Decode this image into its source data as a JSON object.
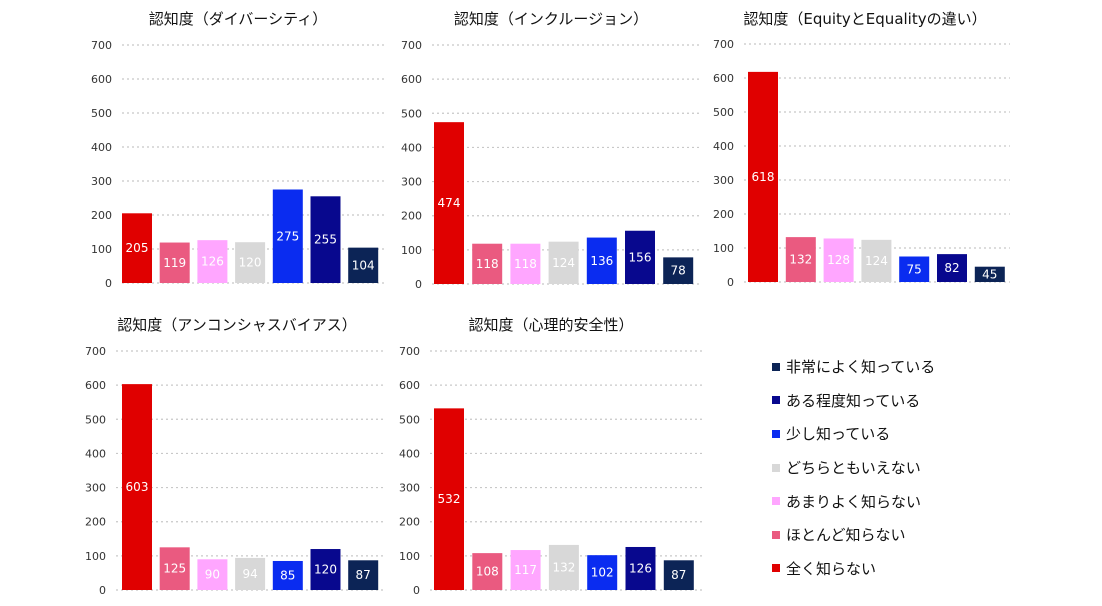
{
  "colors": [
    "#e00000",
    "#ea5a80",
    "#ffa6ff",
    "#d8d8d8",
    "#0a2cf0",
    "#08088e",
    "#0c2456"
  ],
  "chart_data": [
    {
      "type": "bar",
      "title": "認知度（ダイバーシティ）",
      "categories": [
        "全く知らない",
        "ほとんど知らない",
        "あまりよく知らない",
        "どちらともいえない",
        "少し知っている",
        "ある程度知っている",
        "非常によく知っている"
      ],
      "values": [
        205,
        119,
        126,
        120,
        275,
        255,
        104
      ],
      "value_labels": [
        "205",
        "119",
        "126",
        "120",
        "275",
        "255",
        "104"
      ],
      "ylim": [
        0,
        700
      ],
      "yticks": [
        "0",
        "100",
        "200",
        "300",
        "400",
        "500",
        "600",
        "700"
      ]
    },
    {
      "type": "bar",
      "title": "認知度（インクルージョン）",
      "categories": [
        "全く知らない",
        "ほとんど知らない",
        "あまりよく知らない",
        "どちらともいえない",
        "少し知っている",
        "ある程度知っている",
        "非常によく知っている"
      ],
      "values": [
        474,
        118,
        118,
        124,
        136,
        156,
        78
      ],
      "value_labels": [
        "474",
        "118",
        "118",
        "124",
        "136",
        "156",
        "78"
      ],
      "ylim": [
        0,
        700
      ],
      "yticks": [
        "0",
        "100",
        "200",
        "300",
        "400",
        "500",
        "600",
        "700"
      ]
    },
    {
      "type": "bar",
      "title": "認知度（EquityとEqualityの違い）",
      "categories": [
        "全く知らない",
        "ほとんど知らない",
        "あまりよく知らない",
        "どちらともいえない",
        "少し知っている",
        "ある程度知っている",
        "非常によく知っている"
      ],
      "values": [
        618,
        132,
        128,
        124,
        75,
        82,
        45
      ],
      "value_labels": [
        "618",
        "132",
        "128",
        "124",
        "75",
        "82",
        "45"
      ],
      "ylim": [
        0,
        700
      ],
      "yticks": [
        "0",
        "100",
        "200",
        "300",
        "400",
        "500",
        "600",
        "700"
      ]
    },
    {
      "type": "bar",
      "title": "認知度（アンコンシャスバイアス）",
      "categories": [
        "全く知らない",
        "ほとんど知らない",
        "あまりよく知らない",
        "どちらともいえない",
        "少し知っている",
        "ある程度知っている",
        "非常によく知っている"
      ],
      "values": [
        603,
        125,
        90,
        94,
        85,
        120,
        87
      ],
      "value_labels": [
        "603",
        "125",
        "90",
        "94",
        "85",
        "120",
        "87"
      ],
      "ylim": [
        0,
        700
      ],
      "yticks": [
        "0",
        "100",
        "200",
        "300",
        "400",
        "500",
        "600",
        "700"
      ]
    },
    {
      "type": "bar",
      "title": "認知度（心理的安全性）",
      "categories": [
        "全く知らない",
        "ほとんど知らない",
        "あまりよく知らない",
        "どちらともいえない",
        "少し知っている",
        "ある程度知っている",
        "非常によく知っている"
      ],
      "values": [
        532,
        108,
        117,
        132,
        102,
        126,
        87
      ],
      "value_labels": [
        "532",
        "108",
        "117",
        "132",
        "102",
        "126",
        "87"
      ],
      "ylim": [
        0,
        700
      ],
      "yticks": [
        "0",
        "100",
        "200",
        "300",
        "400",
        "500",
        "600",
        "700"
      ]
    }
  ],
  "legend": {
    "items": [
      {
        "label": "非常によく知っている",
        "color": "#0c2456"
      },
      {
        "label": "ある程度知っている",
        "color": "#08088e"
      },
      {
        "label": "少し知っている",
        "color": "#0a2cf0"
      },
      {
        "label": "どちらともいえない",
        "color": "#d8d8d8"
      },
      {
        "label": "あまりよく知らない",
        "color": "#ffa6ff"
      },
      {
        "label": "ほとんど知らない",
        "color": "#ea5a80"
      },
      {
        "label": "全く知らない",
        "color": "#e00000"
      }
    ]
  }
}
